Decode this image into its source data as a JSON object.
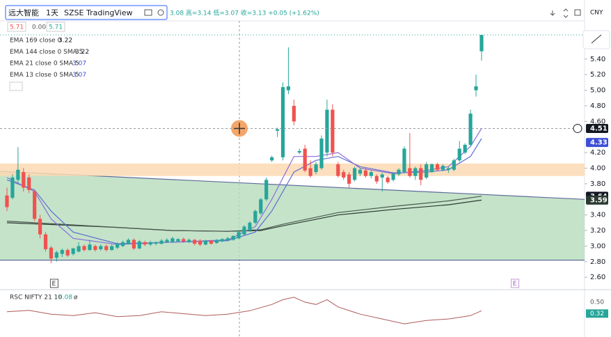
{
  "chart_data": {
    "type": "candlestick",
    "header": {
      "symbol": "远大智能",
      "interval": "1天",
      "exchange": "SZSE",
      "source": "TradingView",
      "ohlc": "3.08 高=3.14 低=3.07 收=3.13 +0.05 (+1.62%)"
    },
    "currency": "CNY",
    "top_values": [
      "5.71",
      "0.00",
      "5.71"
    ],
    "ylim": [
      2.45,
      5.89
    ],
    "yticks": [
      {
        "value": 2.6,
        "label": "2.60"
      },
      {
        "value": 2.8,
        "label": "2.80"
      },
      {
        "value": 3.0,
        "label": "3.00"
      },
      {
        "value": 3.2,
        "label": "3.20"
      },
      {
        "value": 3.4,
        "label": "3.40"
      },
      {
        "value": 3.8,
        "label": "3.80"
      },
      {
        "value": 4.0,
        "label": "4.00"
      },
      {
        "value": 4.2,
        "label": "4.20"
      },
      {
        "value": 4.6,
        "label": "4.60"
      },
      {
        "value": 4.8,
        "label": "4.80"
      },
      {
        "value": 5.0,
        "label": "5.00"
      },
      {
        "value": 5.2,
        "label": "5.20"
      },
      {
        "value": 5.4,
        "label": "5.40"
      }
    ],
    "grid": false,
    "up_color": "#26a69a",
    "down_color": "#ef5350",
    "open": [
      3.65,
      3.62,
      3.85,
      3.95,
      3.88,
      3.7,
      3.35,
      3.15,
      2.98,
      2.85,
      2.9,
      2.95,
      2.9,
      2.93,
      3.0,
      2.95,
      3.0,
      2.96,
      3.0,
      2.95,
      2.98,
      3.0,
      3.03,
      3.08,
      2.97,
      3.05,
      3.02,
      3.03,
      3.03,
      3.05,
      3.05,
      3.06,
      3.09,
      3.05,
      3.08,
      3.07,
      3.02,
      3.07,
      3.04,
      3.06,
      3.07,
      3.08,
      3.1,
      3.15,
      3.2,
      3.3,
      3.42,
      3.6,
      4.1,
      4.48,
      4.14,
      5.0,
      4.8,
      4.2,
      4.25,
      4.0,
      3.95,
      4.0,
      4.2,
      4.75,
      4.05,
      3.95,
      3.92,
      3.85,
      3.93,
      3.97,
      3.9,
      3.9,
      3.88,
      3.88,
      3.85,
      3.92,
      3.95,
      4.0,
      3.9,
      4.0,
      3.88,
      3.95,
      4.05,
      3.98,
      3.98,
      3.98,
      4.1,
      4.2,
      4.3,
      5.0,
      5.5
    ],
    "high": [
      3.75,
      3.92,
      4.27,
      4.0,
      3.92,
      3.72,
      3.4,
      3.18,
      3.0,
      2.94,
      2.97,
      2.97,
      2.98,
      3.05,
      3.02,
      3.08,
      3.02,
      3.02,
      3.02,
      3.02,
      3.05,
      3.07,
      3.1,
      3.1,
      3.08,
      3.07,
      3.07,
      3.06,
      3.09,
      3.1,
      3.12,
      3.1,
      3.11,
      3.1,
      3.09,
      3.09,
      3.08,
      3.08,
      3.09,
      3.1,
      3.12,
      3.14,
      3.2,
      3.27,
      3.32,
      3.47,
      3.62,
      3.88,
      4.16,
      4.52,
      5.1,
      5.55,
      4.88,
      4.25,
      4.3,
      4.1,
      4.08,
      4.42,
      4.88,
      4.82,
      4.08,
      3.98,
      3.95,
      4.02,
      4.0,
      4.0,
      3.97,
      3.92,
      3.94,
      3.9,
      3.95,
      4.0,
      4.28,
      4.45,
      4.02,
      4.05,
      4.08,
      4.06,
      4.07,
      4.05,
      4.02,
      4.12,
      4.35,
      4.32,
      4.75,
      5.2,
      5.71
    ],
    "low": [
      3.45,
      3.6,
      3.8,
      3.7,
      3.68,
      3.32,
      3.1,
      2.93,
      2.78,
      2.8,
      2.86,
      2.86,
      2.88,
      2.92,
      2.93,
      2.94,
      2.93,
      2.94,
      2.93,
      2.94,
      2.96,
      2.99,
      3.02,
      2.95,
      2.96,
      3.0,
      3.0,
      3.01,
      3.02,
      3.04,
      3.04,
      3.05,
      3.04,
      3.04,
      3.01,
      3.0,
      3.01,
      3.02,
      3.03,
      3.05,
      3.06,
      3.07,
      3.09,
      3.14,
      3.18,
      3.28,
      3.4,
      3.58,
      4.08,
      4.4,
      4.1,
      4.95,
      4.55,
      4.18,
      3.95,
      3.88,
      3.92,
      3.98,
      4.15,
      4.15,
      3.88,
      3.85,
      3.75,
      3.83,
      3.9,
      3.88,
      3.87,
      3.8,
      3.7,
      3.8,
      3.83,
      3.9,
      3.93,
      3.88,
      3.85,
      3.78,
      3.86,
      3.94,
      3.96,
      3.96,
      3.94,
      3.96,
      4.08,
      4.18,
      4.28,
      4.92,
      5.38
    ],
    "close": [
      3.5,
      3.88,
      3.98,
      3.75,
      3.72,
      3.35,
      3.15,
      2.96,
      2.84,
      2.92,
      2.95,
      2.88,
      2.97,
      3.0,
      2.95,
      3.02,
      2.95,
      3.0,
      2.95,
      3.0,
      3.03,
      3.05,
      3.08,
      2.97,
      3.06,
      3.02,
      3.05,
      3.05,
      3.07,
      3.08,
      3.1,
      3.09,
      3.06,
      3.08,
      3.03,
      3.02,
      3.07,
      3.03,
      3.08,
      3.09,
      3.1,
      3.13,
      3.18,
      3.25,
      3.3,
      3.45,
      3.6,
      3.85,
      4.14,
      4.5,
      5.04,
      5.05,
      4.6,
      4.22,
      3.97,
      3.9,
      4.05,
      4.38,
      4.75,
      4.2,
      3.9,
      3.88,
      3.8,
      4.0,
      3.98,
      3.9,
      3.95,
      3.83,
      3.92,
      3.82,
      3.93,
      3.98,
      4.25,
      3.9,
      4.0,
      3.85,
      4.05,
      4.05,
      3.98,
      4.03,
      4.0,
      4.1,
      4.25,
      4.3,
      4.7,
      5.05,
      5.71
    ],
    "series": [
      {
        "name": "EMA 169 close 0",
        "value_label": "3.22",
        "color": "#2a3a30",
        "x": [
          0,
          10,
          20,
          30,
          40,
          46,
          50,
          60,
          70,
          80,
          86
        ],
        "values": [
          3.3,
          3.27,
          3.24,
          3.2,
          3.19,
          3.2,
          3.26,
          3.4,
          3.47,
          3.53,
          3.59
        ]
      },
      {
        "name": "EMA 144 close 0 SMA 5",
        "value_label": "3.22",
        "color": "#4a5a50",
        "x": [
          0,
          10,
          20,
          30,
          40,
          46,
          50,
          60,
          70,
          80,
          86
        ],
        "values": [
          3.32,
          3.28,
          3.24,
          3.2,
          3.19,
          3.21,
          3.28,
          3.43,
          3.51,
          3.58,
          3.64
        ]
      },
      {
        "name": "EMA 21 close 0 SMA 5",
        "value_label": "3.07",
        "color": "#5b6fd0",
        "x": [
          0,
          5,
          8,
          12,
          20,
          30,
          40,
          45,
          48,
          52,
          56,
          60,
          64,
          70,
          76,
          80,
          84,
          86
        ],
        "values": [
          3.85,
          3.72,
          3.45,
          3.18,
          3.03,
          3.05,
          3.07,
          3.18,
          3.45,
          3.95,
          4.1,
          4.15,
          4.02,
          3.94,
          3.95,
          3.98,
          4.15,
          4.38
        ]
      },
      {
        "name": "EMA 13 close 0 SMA 5",
        "value_label": "3.07",
        "color": "#8a6fd8",
        "x": [
          0,
          5,
          8,
          12,
          20,
          30,
          40,
          45,
          48,
          52,
          56,
          60,
          64,
          70,
          76,
          80,
          84,
          86
        ],
        "values": [
          3.88,
          3.7,
          3.35,
          3.1,
          3.02,
          3.05,
          3.08,
          3.25,
          3.6,
          4.15,
          4.15,
          4.2,
          4.0,
          3.93,
          3.97,
          4.02,
          4.28,
          4.51
        ]
      }
    ],
    "band": {
      "color": "#fbd9b3",
      "range": [
        3.9,
        4.06
      ]
    },
    "channel": {
      "color": "#b7dcbc",
      "top": [
        3.96,
        3.6
      ],
      "bottom": [
        2.82,
        2.82
      ]
    },
    "price_labels": [
      {
        "value": 4.51,
        "label": "4.51",
        "color": "#131722"
      },
      {
        "value": 4.33,
        "label": "4.33",
        "color": "#3d4fd6"
      },
      {
        "value": 3.64,
        "label": "3.64",
        "color": "#131722"
      },
      {
        "value": 3.59,
        "label": "3.59",
        "color": "#2a3a30"
      }
    ],
    "events": [
      {
        "label": "E",
        "x": 8.5
      },
      {
        "label": "E",
        "x": 92
      }
    ],
    "indicator": {
      "name": "RSC NIFTY 21 10",
      "value_label": "0.08",
      "extra": "ø",
      "color": "#b05a5a",
      "ylim": [
        -0.05,
        0.7
      ],
      "x": [
        0,
        4,
        8,
        12,
        16,
        20,
        24,
        28,
        32,
        36,
        40,
        44,
        48,
        50,
        52,
        54,
        56,
        58,
        60,
        64,
        68,
        72,
        76,
        80,
        84,
        86
      ],
      "values": [
        0.3,
        0.33,
        0.25,
        0.22,
        0.28,
        0.2,
        0.22,
        0.3,
        0.26,
        0.22,
        0.25,
        0.32,
        0.45,
        0.55,
        0.6,
        0.5,
        0.45,
        0.55,
        0.4,
        0.25,
        0.15,
        0.05,
        0.12,
        0.15,
        0.22,
        0.32
      ],
      "levels": [
        {
          "value": 0.5,
          "label": "0.50",
          "color": "#9aa0a8"
        },
        {
          "value": 0.32,
          "label": "0.32",
          "color": "#26a69a"
        }
      ]
    }
  }
}
